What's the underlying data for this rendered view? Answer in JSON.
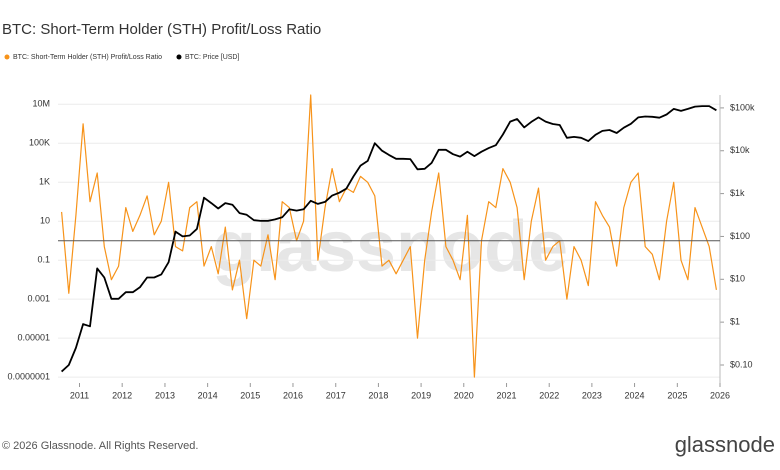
{
  "chart_data": {
    "type": "line",
    "title": "BTC: Short-Term Holder (STH) Profit/Loss Ratio",
    "watermark": "glassnode",
    "footer": "© 2026 Glassnode. All Rights Reserved.",
    "logo": "glassnode",
    "log_scale": true,
    "grid": true,
    "reference_line": 1,
    "x": [
      "2010-08",
      "2010-10",
      "2010-12",
      "2011-02",
      "2011-04",
      "2011-06",
      "2011-08",
      "2011-10",
      "2011-12",
      "2012-02",
      "2012-04",
      "2012-06",
      "2012-08",
      "2012-10",
      "2012-12",
      "2013-02",
      "2013-04",
      "2013-06",
      "2013-08",
      "2013-10",
      "2013-12",
      "2014-02",
      "2014-04",
      "2014-06",
      "2014-08",
      "2014-10",
      "2014-12",
      "2015-02",
      "2015-04",
      "2015-06",
      "2015-08",
      "2015-10",
      "2015-12",
      "2016-02",
      "2016-04",
      "2016-06",
      "2016-08",
      "2016-10",
      "2016-12",
      "2017-02",
      "2017-04",
      "2017-06",
      "2017-08",
      "2017-10",
      "2017-12",
      "2018-02",
      "2018-04",
      "2018-06",
      "2018-08",
      "2018-10",
      "2018-12",
      "2019-02",
      "2019-04",
      "2019-06",
      "2019-08",
      "2019-10",
      "2019-12",
      "2020-02",
      "2020-04",
      "2020-06",
      "2020-08",
      "2020-10",
      "2020-12",
      "2021-02",
      "2021-04",
      "2021-06",
      "2021-08",
      "2021-10",
      "2021-12",
      "2022-02",
      "2022-04",
      "2022-06",
      "2022-08",
      "2022-10",
      "2022-12",
      "2023-02",
      "2023-04",
      "2023-06",
      "2023-08",
      "2023-10",
      "2023-12",
      "2024-02",
      "2024-04",
      "2024-06",
      "2024-08",
      "2024-10",
      "2024-12",
      "2025-02",
      "2025-04",
      "2025-06",
      "2025-08",
      "2025-10",
      "2025-12"
    ],
    "xlim": [
      "2010-07",
      "2026-01"
    ],
    "xticks": [
      {
        "value": "2011-01",
        "label": "2011"
      },
      {
        "value": "2012-01",
        "label": "2012"
      },
      {
        "value": "2013-01",
        "label": "2013"
      },
      {
        "value": "2014-01",
        "label": "2014"
      },
      {
        "value": "2015-01",
        "label": "2015"
      },
      {
        "value": "2016-01",
        "label": "2016"
      },
      {
        "value": "2017-01",
        "label": "2017"
      },
      {
        "value": "2018-01",
        "label": "2018"
      },
      {
        "value": "2019-01",
        "label": "2019"
      },
      {
        "value": "2020-01",
        "label": "2020"
      },
      {
        "value": "2021-01",
        "label": "2021"
      },
      {
        "value": "2022-01",
        "label": "2022"
      },
      {
        "value": "2023-01",
        "label": "2023"
      },
      {
        "value": "2024-01",
        "label": "2024"
      },
      {
        "value": "2025-01",
        "label": "2025"
      },
      {
        "value": "2026-01",
        "label": "2026"
      }
    ],
    "ylim": [
      5e-08,
      30000000
    ],
    "yticks": [
      {
        "value": 10000000,
        "label": "10M"
      },
      {
        "value": 100000,
        "label": "100K"
      },
      {
        "value": 1000,
        "label": "1K"
      },
      10,
      0.1,
      0.001,
      1e-05,
      {
        "value": 1e-07,
        "label": "0.0000001"
      }
    ],
    "y2lim": [
      0.038,
      200000
    ],
    "y2ticks": [
      {
        "value": 100000,
        "label": "$100k"
      },
      {
        "value": 10000,
        "label": "$10k"
      },
      {
        "value": 1000,
        "label": "$1k"
      },
      {
        "value": 100,
        "label": "$100"
      },
      {
        "value": 10,
        "label": "$10"
      },
      {
        "value": 1,
        "label": "$1"
      },
      {
        "value": 0.1,
        "label": "$0.10"
      }
    ],
    "series": [
      {
        "name": "BTC: Short-Term Holder (STH) Profit/Loss Ratio",
        "color": "#f7931a",
        "axis": "y",
        "values": [
          30,
          0.002,
          20,
          1000000,
          100,
          3000,
          0.5,
          0.01,
          0.05,
          50,
          3,
          20,
          200,
          2,
          10,
          1000,
          0.5,
          0.3,
          50,
          100,
          0.05,
          0.5,
          0.02,
          5,
          0.003,
          0.1,
          0.0001,
          0.1,
          0.05,
          2,
          0.01,
          100,
          50,
          1,
          10,
          30000000,
          0.1,
          50,
          5000,
          100,
          500,
          300,
          2000,
          1000,
          200,
          0.05,
          0.1,
          0.02,
          0.1,
          0.5,
          1e-05,
          0.1,
          30,
          3000,
          0.5,
          0.1,
          0.01,
          20,
          1e-07,
          1,
          100,
          50,
          5000,
          1000,
          50,
          0.01,
          10,
          500,
          0.1,
          0.5,
          1,
          0.001,
          0.5,
          0.1,
          0.005,
          100,
          20,
          5,
          0.05,
          50,
          1000,
          3000,
          0.5,
          0.2,
          0.01,
          10,
          1000,
          0.1,
          0.01,
          50,
          5,
          0.5,
          0.003
        ]
      },
      {
        "name": "BTC: Price [USD]",
        "color": "#000000",
        "axis": "y2",
        "values": [
          0.07,
          0.1,
          0.25,
          0.9,
          0.8,
          18,
          11,
          3.5,
          3.5,
          5,
          5,
          6.5,
          11,
          11,
          13,
          25,
          130,
          100,
          105,
          150,
          800,
          600,
          450,
          600,
          550,
          350,
          320,
          240,
          230,
          230,
          250,
          280,
          430,
          400,
          430,
          680,
          575,
          640,
          900,
          1050,
          1300,
          2500,
          4500,
          5800,
          15000,
          10000,
          8000,
          6500,
          6500,
          6400,
          3700,
          3800,
          5200,
          10500,
          10500,
          8300,
          7300,
          9500,
          7500,
          9500,
          11500,
          13500,
          24000,
          48000,
          55000,
          35000,
          47000,
          60000,
          48000,
          42000,
          40000,
          20000,
          21000,
          20000,
          16800,
          23500,
          29000,
          30500,
          26000,
          34500,
          42500,
          60000,
          63000,
          62000,
          59000,
          70000,
          95000,
          85000,
          95000,
          107000,
          110000,
          110000,
          88000
        ]
      }
    ]
  }
}
